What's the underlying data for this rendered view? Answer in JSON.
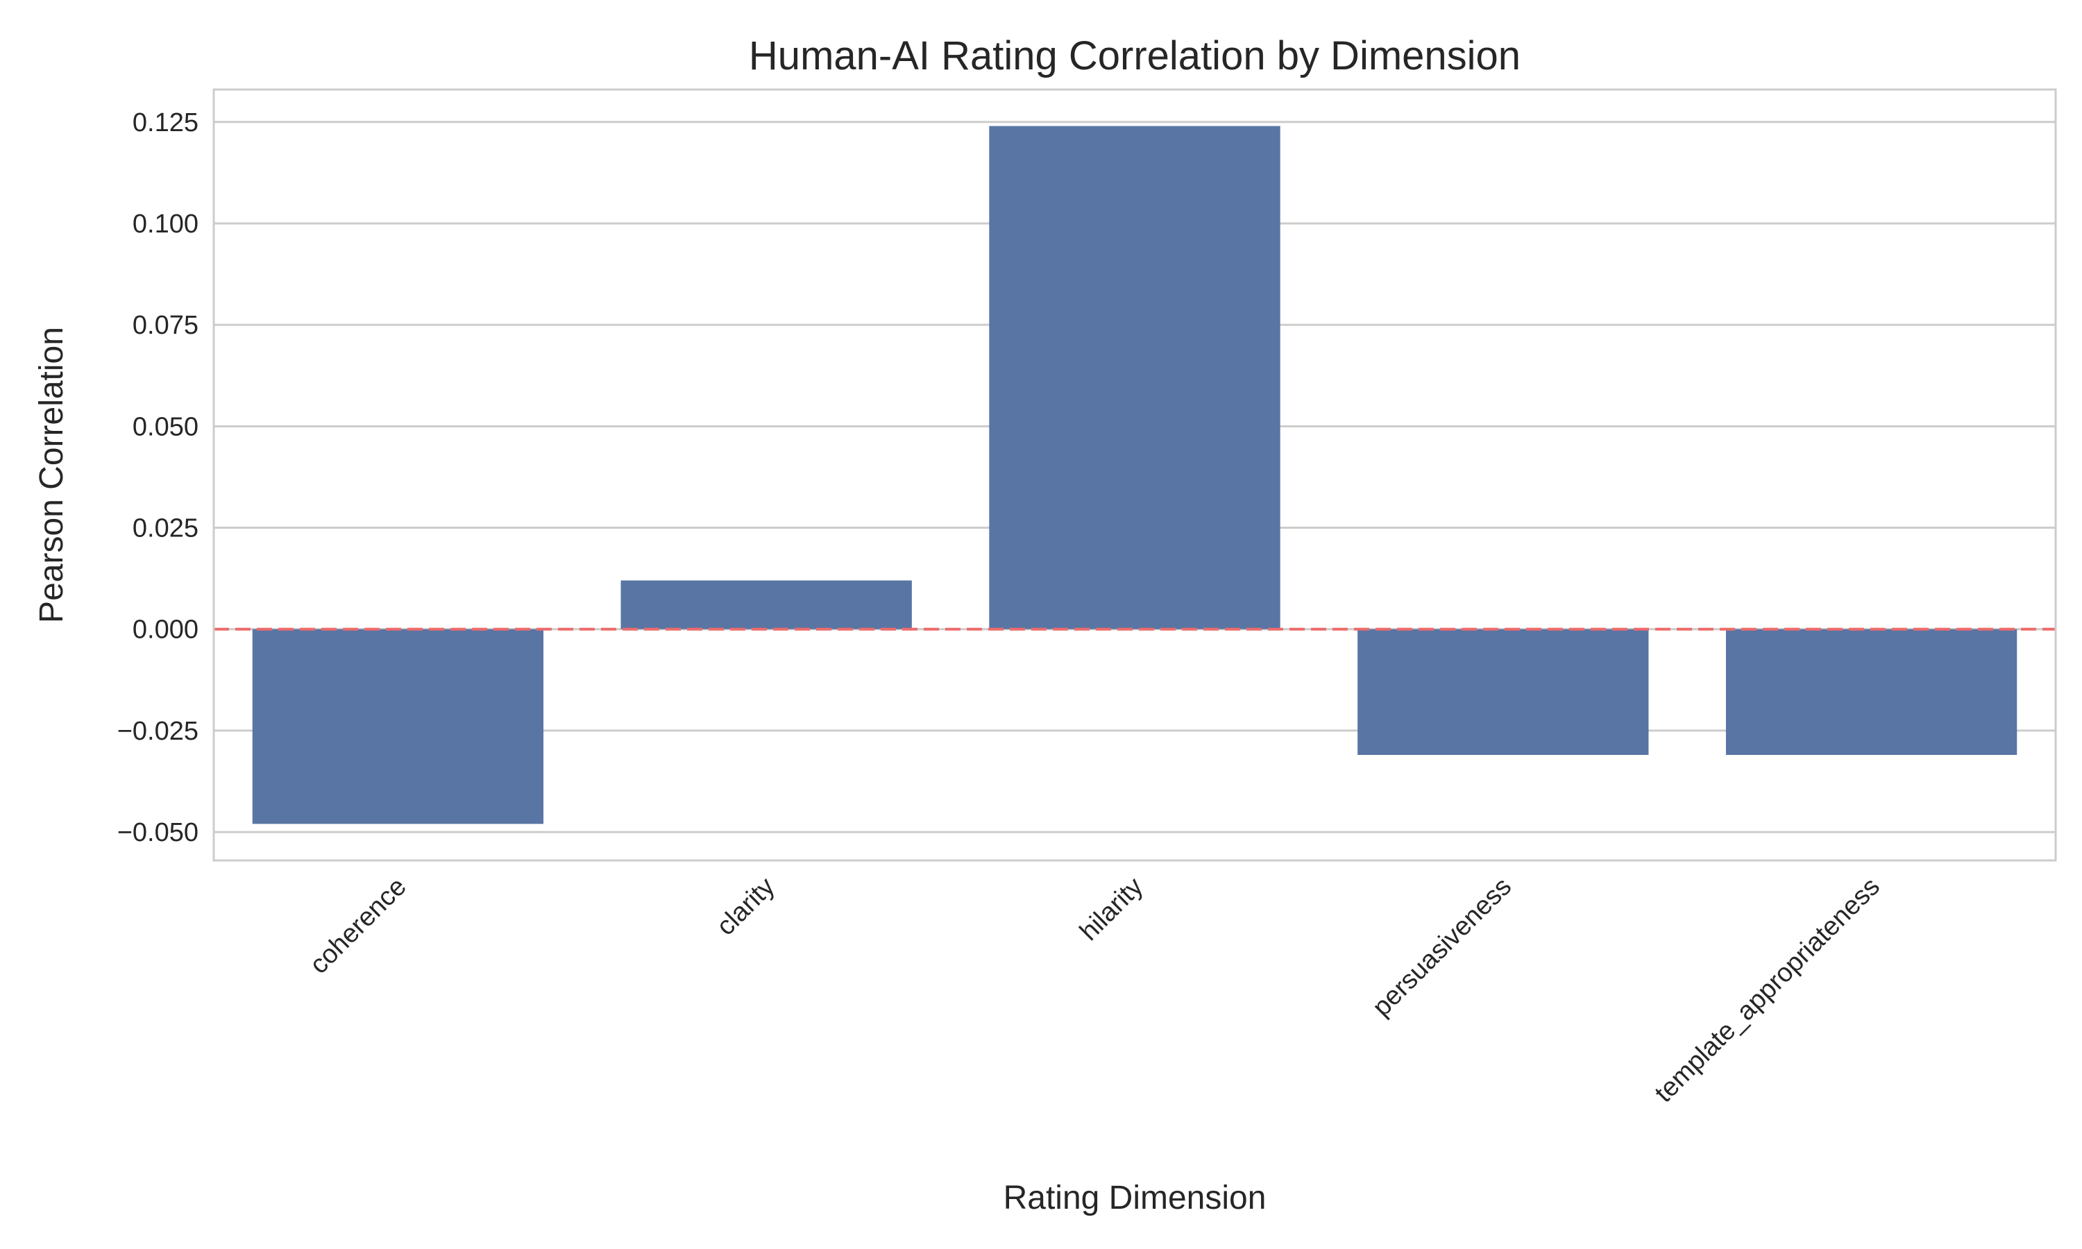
{
  "chart_data": {
    "type": "bar",
    "title": "Human-AI Rating Correlation by Dimension",
    "xlabel": "Rating Dimension",
    "ylabel": "Pearson Correlation",
    "categories": [
      "coherence",
      "clarity",
      "hilarity",
      "persuasiveness",
      "template_appropriateness"
    ],
    "values": [
      -0.048,
      0.012,
      0.124,
      -0.031,
      -0.031
    ],
    "ylim": [
      -0.057,
      0.133
    ],
    "yticks": [
      -0.05,
      -0.025,
      0,
      0.025,
      0.05,
      0.075,
      0.1,
      0.125
    ],
    "ytick_labels": [
      "−0.050",
      "−0.025",
      "0.000",
      "0.025",
      "0.050",
      "0.075",
      "0.100",
      "0.125"
    ],
    "reference_line": {
      "y": 0,
      "style": "dashed"
    },
    "grid": "horizontal",
    "colors": {
      "bar": "#5975a4",
      "reference_line": "#ee6b6b",
      "grid": "#cccccc",
      "spine": "#cccccc"
    }
  }
}
